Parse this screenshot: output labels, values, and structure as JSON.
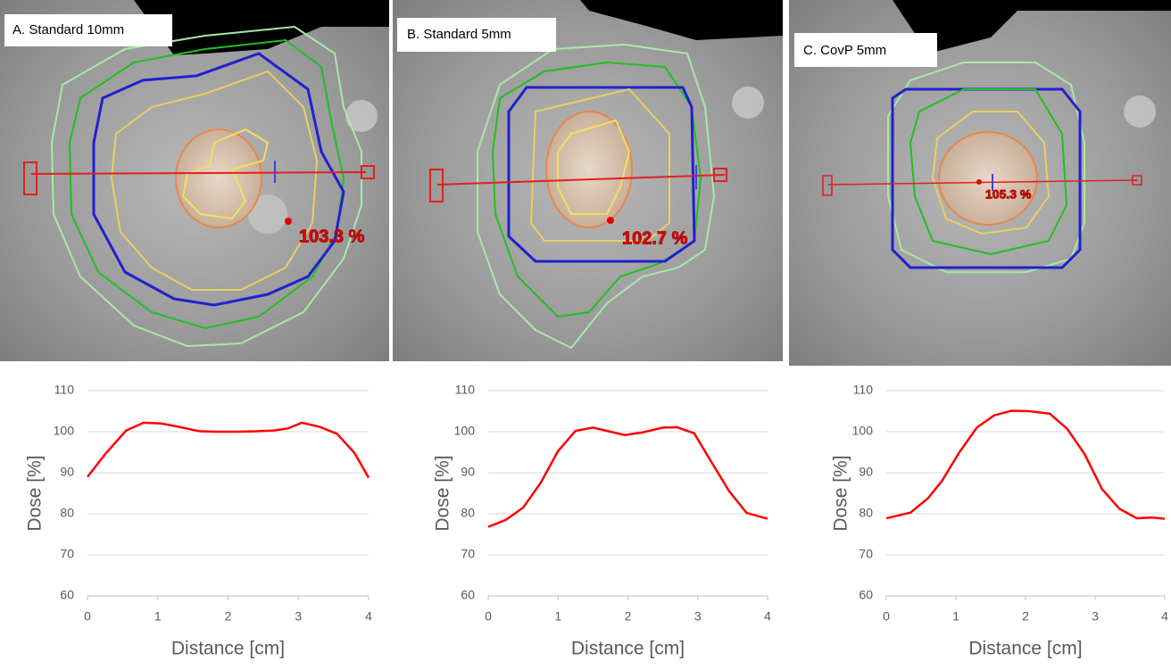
{
  "panels": [
    {
      "title": "A. Standard 10mm",
      "dose_label": "103.3 %"
    },
    {
      "title": "B. Standard 5mm",
      "dose_label": "102.7 %"
    },
    {
      "title": "C. CovP 5mm",
      "dose_label": "105.3 %"
    }
  ],
  "chart_data": [
    {
      "type": "line",
      "xlabel": "Distance [cm]",
      "ylabel": "Dose [%]",
      "color": "#ff0000",
      "grid": true,
      "xlim": [
        0,
        4
      ],
      "ylim": [
        60,
        110
      ],
      "xticks": [
        0,
        1,
        2,
        3,
        4
      ],
      "yticks": [
        60,
        70,
        80,
        90,
        100,
        110
      ],
      "x": [
        0,
        0.25,
        0.55,
        0.8,
        1.05,
        1.3,
        1.6,
        1.85,
        2.1,
        2.4,
        2.65,
        2.85,
        3.05,
        3.3,
        3.55,
        3.8,
        4
      ],
      "values": [
        89,
        94.5,
        100.3,
        102.2,
        102,
        101.2,
        100.1,
        100,
        100,
        100.1,
        100.3,
        100.8,
        102.2,
        101.2,
        99.5,
        94.8,
        88.8
      ]
    },
    {
      "type": "line",
      "xlabel": "Distance [cm]",
      "ylabel": "Dose [%]",
      "color": "#ff0000",
      "grid": true,
      "xlim": [
        0,
        4
      ],
      "ylim": [
        60,
        110
      ],
      "xticks": [
        0,
        1,
        2,
        3,
        4
      ],
      "yticks": [
        60,
        70,
        80,
        90,
        100,
        110
      ],
      "x": [
        0,
        0.25,
        0.5,
        0.75,
        1,
        1.25,
        1.5,
        1.75,
        1.95,
        2.2,
        2.5,
        2.7,
        2.95,
        3.2,
        3.45,
        3.7,
        4
      ],
      "values": [
        76.8,
        78.5,
        81.5,
        87.5,
        95.3,
        100.2,
        101,
        100,
        99.2,
        99.8,
        101,
        101.1,
        99.6,
        92.5,
        85.5,
        80.2,
        78.8
      ]
    },
    {
      "type": "line",
      "xlabel": "Distance [cm]",
      "ylabel": "Dose [%]",
      "color": "#ff0000",
      "grid": true,
      "xlim": [
        0,
        4
      ],
      "ylim": [
        60,
        110
      ],
      "xticks": [
        0,
        1,
        2,
        3,
        4
      ],
      "yticks": [
        60,
        70,
        80,
        90,
        100,
        110
      ],
      "x": [
        0,
        0.35,
        0.6,
        0.8,
        1.05,
        1.3,
        1.55,
        1.8,
        2.05,
        2.35,
        2.6,
        2.85,
        3.1,
        3.35,
        3.6,
        3.8,
        4
      ],
      "values": [
        78.9,
        80.3,
        83.8,
        88,
        95,
        101,
        104,
        105.1,
        105,
        104.4,
        100.7,
        94.5,
        86,
        81.2,
        78.9,
        79.1,
        78.8
      ]
    }
  ]
}
